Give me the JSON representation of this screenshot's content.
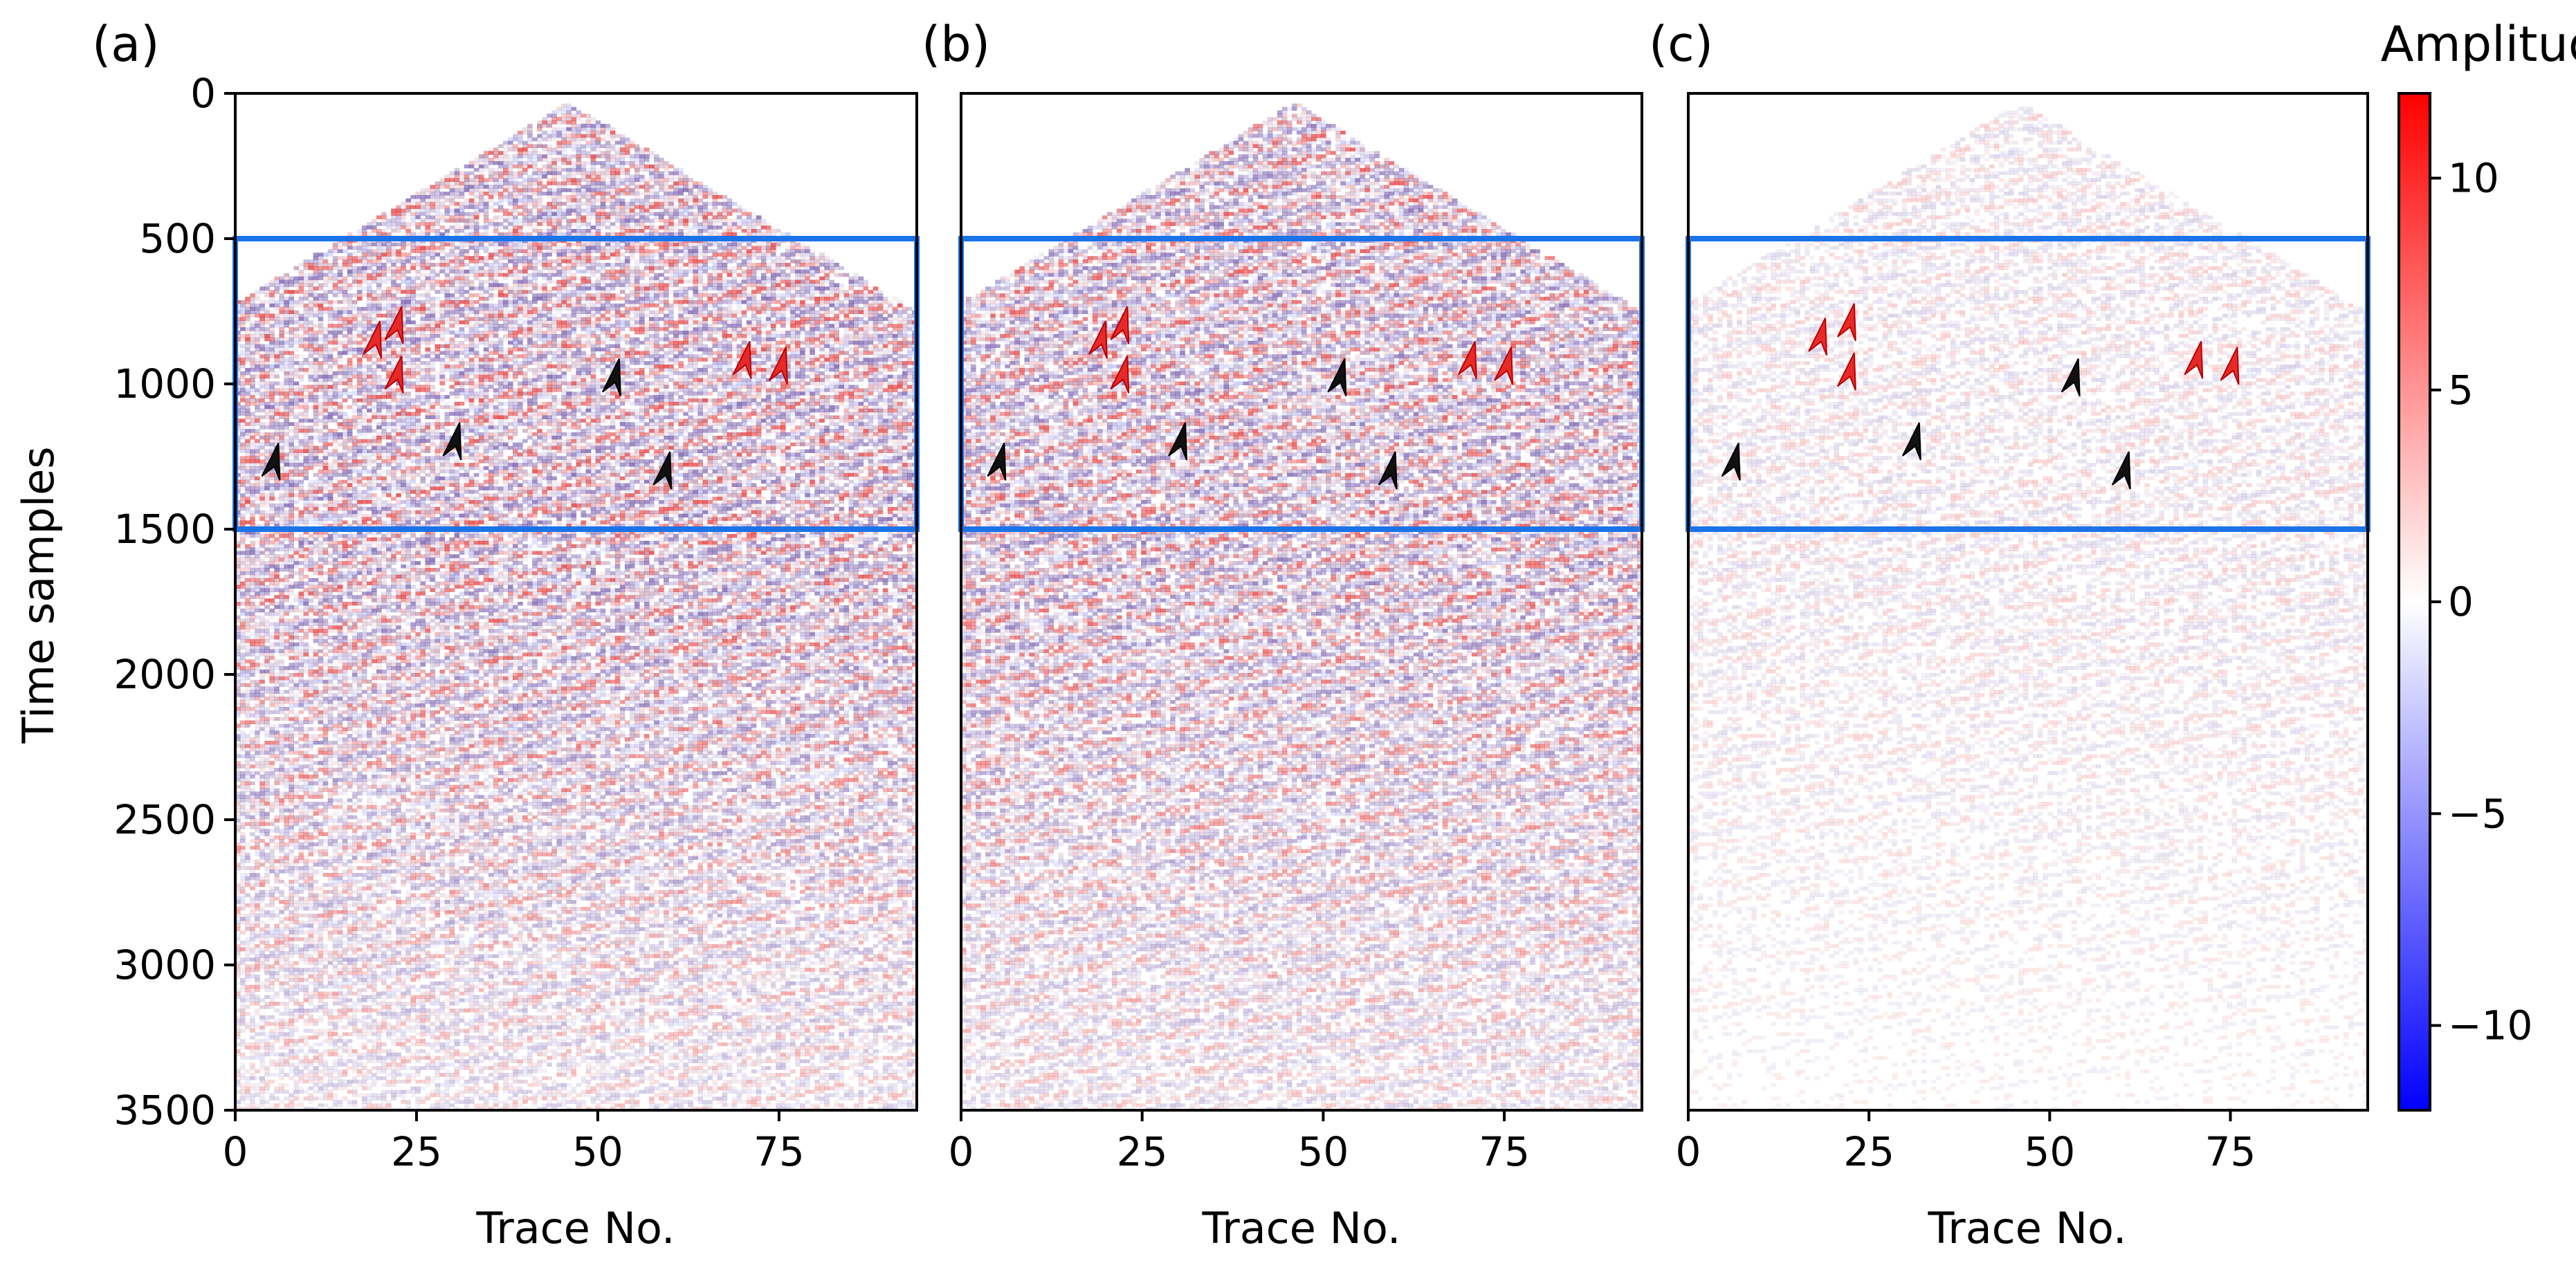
{
  "figure": {
    "ylabel": "Time samples",
    "colorbar": {
      "label": "Amplitude",
      "range": [
        -12,
        12
      ],
      "ticks": [
        10,
        5,
        0,
        -5,
        -10
      ],
      "tick_labels": [
        "10",
        "5",
        "0",
        "−5",
        "−10"
      ],
      "colormap": "bwr",
      "colors": {
        "low": "#0000ff",
        "mid": "#ffffff",
        "high": "#ff0000"
      }
    }
  },
  "chart_data": [
    {
      "type": "heatmap",
      "panel_label": "(a)",
      "xlabel": "Trace No.",
      "ylabel": "Time samples",
      "xlim": [
        0,
        94
      ],
      "ylim": [
        3500,
        0
      ],
      "xticks": [
        0,
        25,
        50,
        75
      ],
      "yticks": [
        0,
        500,
        1000,
        1500,
        2000,
        2500,
        3000,
        3500
      ],
      "highlight_box": {
        "x": [
          0,
          94
        ],
        "y": [
          500,
          1500
        ],
        "color": "#1a73e8"
      },
      "wavefield_intensity": 1.0,
      "red_arrows": [
        [
          19,
          850
        ],
        [
          22,
          800
        ],
        [
          22,
          970
        ],
        [
          70,
          920
        ],
        [
          75,
          940
        ]
      ],
      "black_arrows": [
        [
          5,
          1270
        ],
        [
          30,
          1200
        ],
        [
          52,
          980
        ],
        [
          59,
          1300
        ]
      ]
    },
    {
      "type": "heatmap",
      "panel_label": "(b)",
      "xlabel": "Trace No.",
      "xlim": [
        0,
        94
      ],
      "ylim": [
        3500,
        0
      ],
      "xticks": [
        0,
        25,
        50,
        75
      ],
      "highlight_box": {
        "x": [
          0,
          94
        ],
        "y": [
          500,
          1500
        ],
        "color": "#1a73e8"
      },
      "wavefield_intensity": 0.95,
      "red_arrows": [
        [
          19,
          850
        ],
        [
          22,
          800
        ],
        [
          22,
          970
        ],
        [
          70,
          920
        ],
        [
          75,
          940
        ]
      ],
      "black_arrows": [
        [
          5,
          1270
        ],
        [
          30,
          1200
        ],
        [
          52,
          980
        ],
        [
          59,
          1300
        ]
      ]
    },
    {
      "type": "heatmap",
      "panel_label": "(c)",
      "xlabel": "Trace No.",
      "xlim": [
        0,
        94
      ],
      "ylim": [
        3500,
        0
      ],
      "xticks": [
        0,
        25,
        50,
        75
      ],
      "highlight_box": {
        "x": [
          0,
          94
        ],
        "y": [
          500,
          1500
        ],
        "color": "#1a73e8"
      },
      "wavefield_intensity": 0.3,
      "red_arrows": [
        [
          18,
          840
        ],
        [
          22,
          790
        ],
        [
          22,
          960
        ],
        [
          70,
          920
        ],
        [
          75,
          940
        ]
      ],
      "black_arrows": [
        [
          6,
          1270
        ],
        [
          31,
          1200
        ],
        [
          53,
          980
        ],
        [
          60,
          1300
        ]
      ]
    }
  ]
}
